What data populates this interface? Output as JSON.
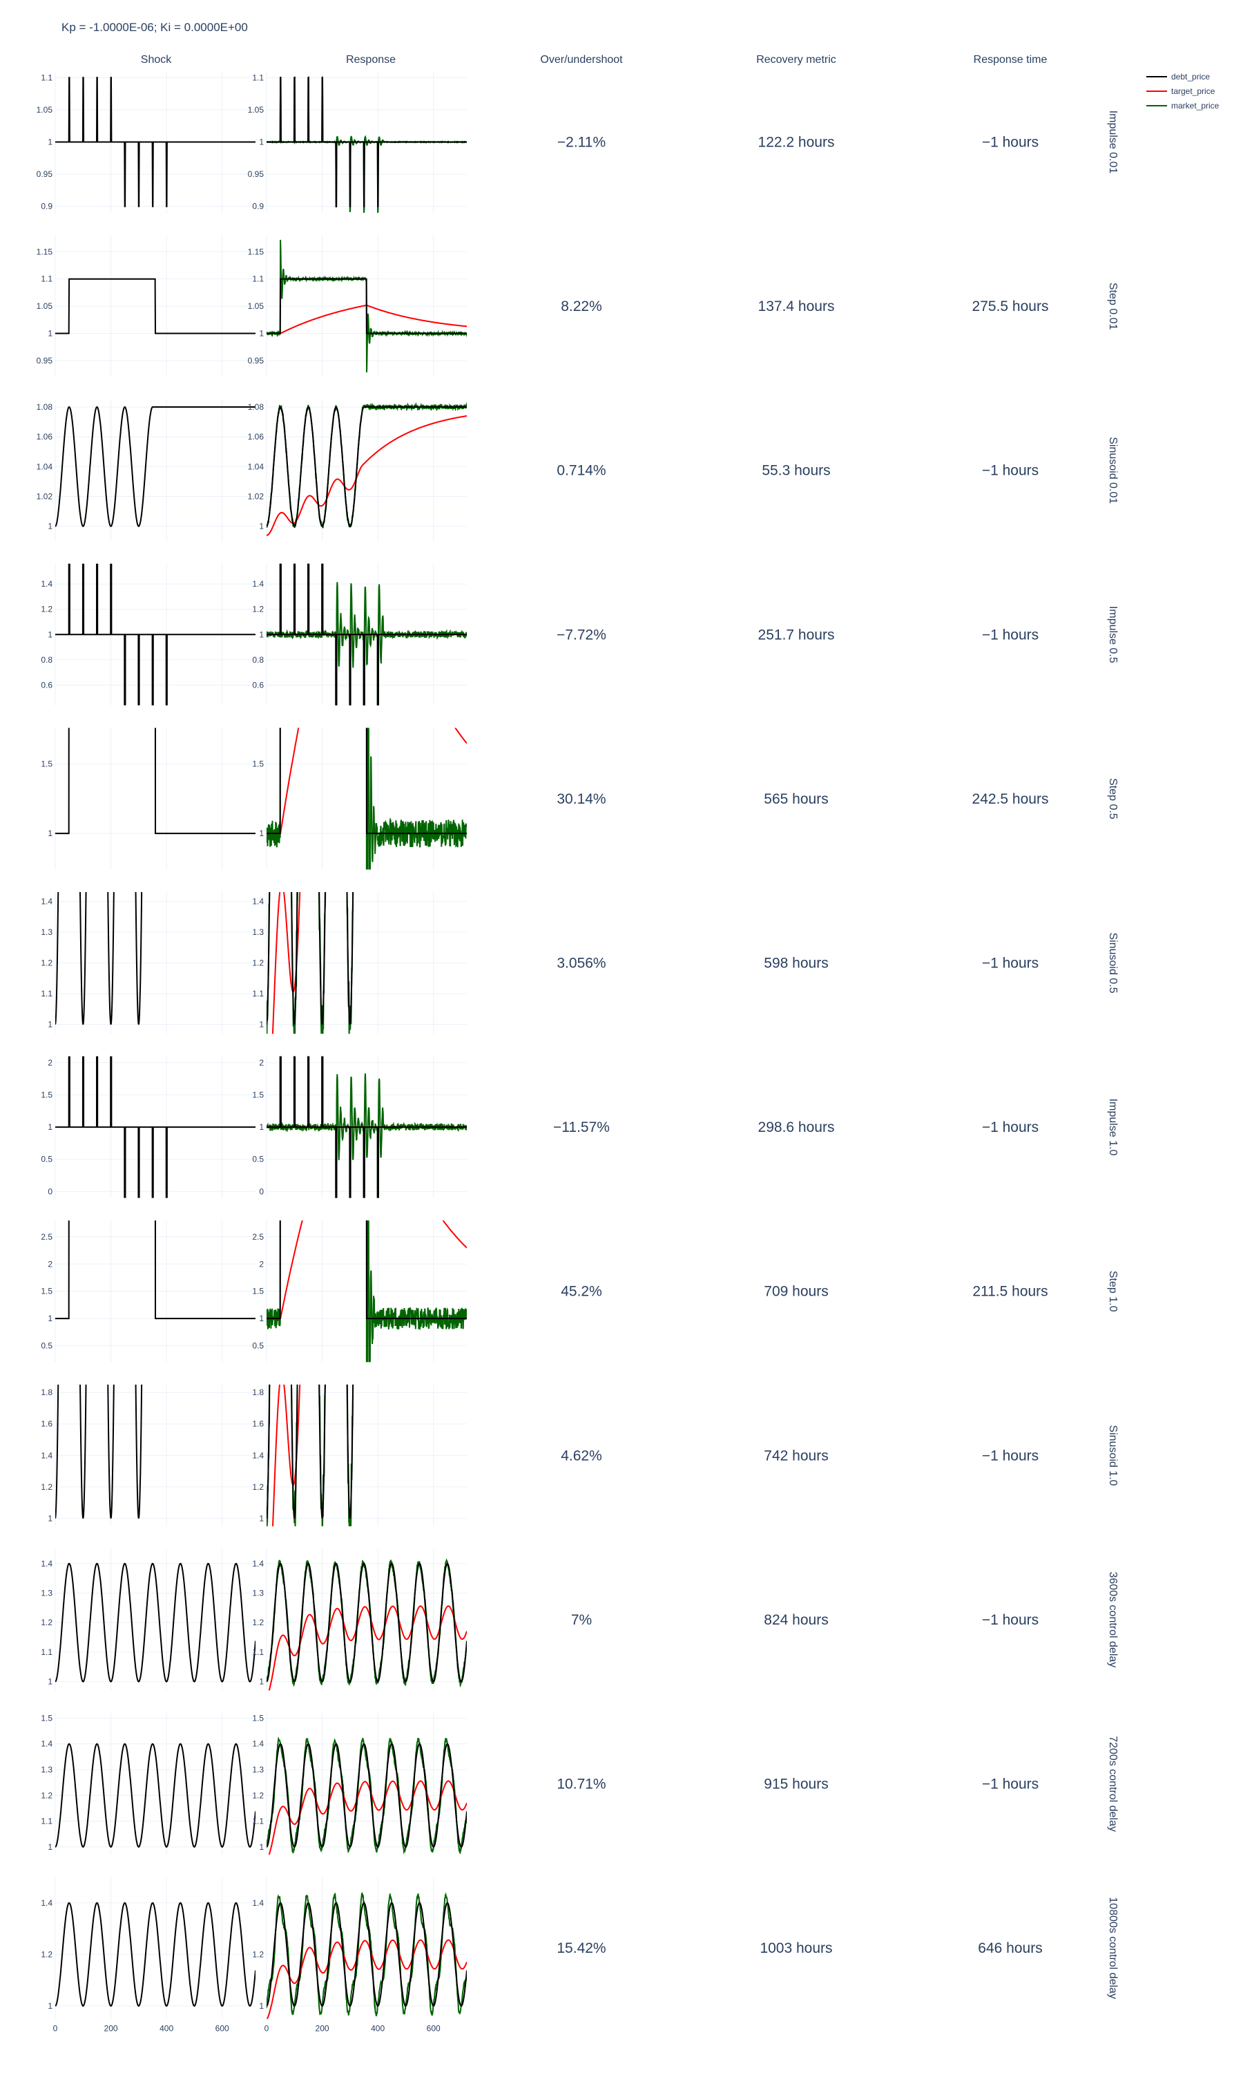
{
  "title": "Kp = -1.0000E-06; Ki = 0.0000E+00",
  "columns": {
    "shock": "Shock",
    "response": "Response",
    "overshoot": "Over/undershoot",
    "recovery": "Recovery metric",
    "response_time": "Response time"
  },
  "legend": [
    {
      "name": "debt_price",
      "color": "#000000"
    },
    {
      "name": "target_price",
      "color": "#ff0000"
    },
    {
      "name": "market_price",
      "color": "#006400"
    }
  ],
  "chart_data": {
    "type": "line",
    "x_axis": {
      "range": [
        0,
        720
      ],
      "ticks": [
        0,
        200,
        400,
        600
      ]
    },
    "grid": true,
    "legend_placement": "top-right",
    "rows": [
      {
        "label": "Impulse 0.01",
        "kind": "impulse",
        "amp": 0.01,
        "ylim": [
          0.89,
          1.11
        ],
        "yticks": [
          "0.9",
          "0.95",
          "1",
          "1.05",
          "1.1"
        ],
        "ytick_values": [
          0.9,
          0.95,
          1,
          1.05,
          1.1
        ],
        "overshoot": "−2.11%",
        "recovery": "122.2 hours",
        "response_time": "−1 hours"
      },
      {
        "label": "Step 0.01",
        "kind": "step",
        "amp": 0.01,
        "ylim": [
          0.92,
          1.18
        ],
        "yticks": [
          "0.95",
          "1",
          "1.05",
          "1.1",
          "1.15"
        ],
        "ytick_values": [
          0.95,
          1,
          1.05,
          1.1,
          1.15
        ],
        "overshoot": "8.22%",
        "recovery": "137.4 hours",
        "response_time": "275.5 hours"
      },
      {
        "label": "Sinusoid 0.01",
        "kind": "sinusoid",
        "amp": 0.01,
        "ylim": [
          0.99,
          1.085
        ],
        "yticks": [
          "1",
          "1.02",
          "1.04",
          "1.06",
          "1.08"
        ],
        "ytick_values": [
          1,
          1.02,
          1.04,
          1.06,
          1.08
        ],
        "overshoot": "0.714%",
        "recovery": "55.3 hours",
        "response_time": "−1 hours"
      },
      {
        "label": "Impulse 0.5",
        "kind": "impulse",
        "amp": 0.5,
        "ylim": [
          0.44,
          1.56
        ],
        "yticks": [
          "0.6",
          "0.8",
          "1",
          "1.2",
          "1.4"
        ],
        "ytick_values": [
          0.6,
          0.8,
          1,
          1.2,
          1.4
        ],
        "overshoot": "−7.72%",
        "recovery": "251.7 hours",
        "response_time": "−1 hours"
      },
      {
        "label": "Step 0.5",
        "kind": "step",
        "amp": 0.5,
        "ylim": [
          0.74,
          1.76
        ],
        "yticks": [
          "1",
          "1.5"
        ],
        "ytick_values": [
          1,
          1.5
        ],
        "overshoot": "30.14%",
        "recovery": "565 hours",
        "response_time": "242.5 hours"
      },
      {
        "label": "Sinusoid 0.5",
        "kind": "sinusoid",
        "amp": 0.5,
        "ylim": [
          0.97,
          1.43
        ],
        "yticks": [
          "1",
          "1.1",
          "1.2",
          "1.3",
          "1.4"
        ],
        "ytick_values": [
          1,
          1.1,
          1.2,
          1.3,
          1.4
        ],
        "overshoot": "3.056%",
        "recovery": "598 hours",
        "response_time": "−1 hours"
      },
      {
        "label": "Impulse 1.0",
        "kind": "impulse",
        "amp": 1.0,
        "ylim": [
          -0.1,
          2.1
        ],
        "yticks": [
          "0",
          "0.5",
          "1",
          "1.5",
          "2"
        ],
        "ytick_values": [
          0,
          0.5,
          1,
          1.5,
          2
        ],
        "overshoot": "−11.57%",
        "recovery": "298.6 hours",
        "response_time": "−1 hours"
      },
      {
        "label": "Step 1.0",
        "kind": "step",
        "amp": 1.0,
        "ylim": [
          0.2,
          2.8
        ],
        "yticks": [
          "0.5",
          "1",
          "1.5",
          "2",
          "2.5"
        ],
        "ytick_values": [
          0.5,
          1,
          1.5,
          2,
          2.5
        ],
        "overshoot": "45.2%",
        "recovery": "709 hours",
        "response_time": "211.5 hours"
      },
      {
        "label": "Sinusoid 1.0",
        "kind": "sinusoid",
        "amp": 1.0,
        "ylim": [
          0.95,
          1.85
        ],
        "yticks": [
          "1",
          "1.2",
          "1.4",
          "1.6",
          "1.8"
        ],
        "ytick_values": [
          1,
          1.2,
          1.4,
          1.6,
          1.8
        ],
        "overshoot": "4.62%",
        "recovery": "742 hours",
        "response_time": "−1 hours"
      },
      {
        "label": "3600s control delay",
        "kind": "sin_cont",
        "amp": 0.4,
        "delay": 1,
        "ylim": [
          0.97,
          1.45
        ],
        "yticks": [
          "1",
          "1.1",
          "1.2",
          "1.3",
          "1.4"
        ],
        "ytick_values": [
          1,
          1.1,
          1.2,
          1.3,
          1.4
        ],
        "overshoot": "7%",
        "recovery": "824 hours",
        "response_time": "−1 hours"
      },
      {
        "label": "7200s control delay",
        "kind": "sin_cont",
        "amp": 0.4,
        "delay": 2,
        "ylim": [
          0.97,
          1.52
        ],
        "yticks": [
          "1",
          "1.1",
          "1.2",
          "1.3",
          "1.4",
          "1.5"
        ],
        "ytick_values": [
          1,
          1.1,
          1.2,
          1.3,
          1.4,
          1.5
        ],
        "overshoot": "10.71%",
        "recovery": "915 hours",
        "response_time": "−1 hours"
      },
      {
        "label": "10800s control delay",
        "kind": "sin_cont",
        "amp": 0.4,
        "delay": 3,
        "ylim": [
          0.95,
          1.5
        ],
        "yticks": [
          "1",
          "1.2",
          "1.4"
        ],
        "ytick_values": [
          1,
          1.2,
          1.4
        ],
        "overshoot": "15.42%",
        "recovery": "1003 hours",
        "response_time": "646 hours"
      }
    ]
  }
}
